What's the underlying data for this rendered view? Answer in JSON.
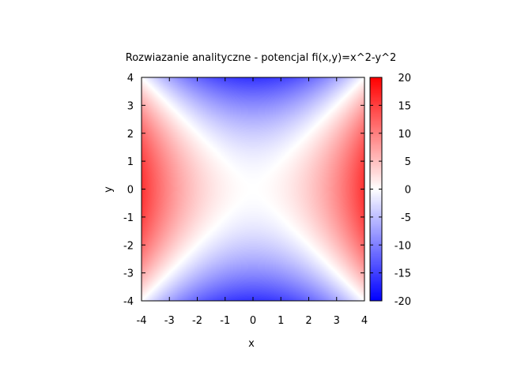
{
  "chart_data": {
    "type": "heatmap",
    "title": "Rozwiazanie analityczne - potencjal fi(x,y)=x^2-y^2",
    "function": "x^2-y^2",
    "xlabel": "x",
    "ylabel": "y",
    "xlim": [
      -4,
      4
    ],
    "ylim": [
      -4,
      4
    ],
    "x_ticks": [
      -4,
      -3,
      -2,
      -1,
      0,
      1,
      2,
      3,
      4
    ],
    "y_ticks": [
      -4,
      -3,
      -2,
      -1,
      0,
      1,
      2,
      3,
      4
    ],
    "x_tick_labels": [
      "-4",
      "-3",
      "-2",
      "-1",
      "0",
      "1",
      "2",
      "3",
      "4"
    ],
    "y_tick_labels": [
      "-4",
      "-3",
      "-2",
      "-1",
      "0",
      "1",
      "2",
      "3",
      "4"
    ],
    "colorbar": {
      "range": [
        -20,
        20
      ],
      "ticks": [
        -20,
        -15,
        -10,
        -5,
        0,
        5,
        10,
        15,
        20
      ],
      "tick_labels": [
        "-20",
        "-15",
        "-10",
        "-5",
        "0",
        "5",
        "10",
        "15",
        "20"
      ],
      "low_color": "#0000ff",
      "mid_color": "#ffffff",
      "high_color": "#ff0000"
    },
    "grid": false,
    "values_sample": {
      "corners": [
        [
          -4,
          -4,
          0
        ],
        [
          4,
          4,
          0
        ],
        [
          -4,
          4,
          0
        ],
        [
          4,
          -4,
          0
        ]
      ],
      "edges": [
        [
          4,
          0,
          16
        ],
        [
          -4,
          0,
          16
        ],
        [
          0,
          4,
          -16
        ],
        [
          0,
          -4,
          -16
        ]
      ],
      "center": [
        0,
        0,
        0
      ]
    }
  }
}
